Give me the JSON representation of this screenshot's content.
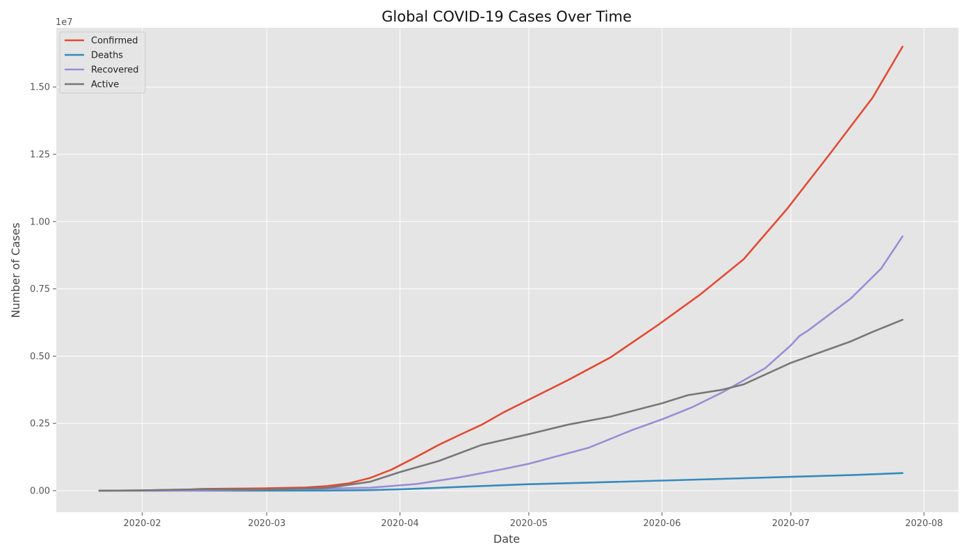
{
  "chart_data": {
    "type": "line",
    "title": "Global COVID-19 Cases Over Time",
    "xlabel": "Date",
    "ylabel": "Number of Cases",
    "y_offset_label": "1e7",
    "x_axis_type": "date",
    "xlim": [
      "2020-01-12",
      "2020-08-09"
    ],
    "ylim": [
      -800000,
      17200000
    ],
    "x_ticks": [
      "2020-02-01",
      "2020-03-01",
      "2020-04-01",
      "2020-05-01",
      "2020-06-01",
      "2020-07-01",
      "2020-08-01"
    ],
    "x_tick_labels": [
      "2020-02",
      "2020-03",
      "2020-04",
      "2020-05",
      "2020-06",
      "2020-07",
      "2020-08"
    ],
    "y_ticks": [
      0,
      2500000,
      5000000,
      7500000,
      10000000,
      12500000,
      15000000
    ],
    "y_tick_labels": [
      "0.00",
      "0.25",
      "0.50",
      "0.75",
      "1.00",
      "1.25",
      "1.50"
    ],
    "grid": true,
    "legend_position": "top-left",
    "background_color": "#e5e5e5",
    "grid_color": "#ffffff",
    "series": [
      {
        "name": "Confirmed",
        "color": "#e24a33",
        "points": [
          [
            "2020-01-22",
            555
          ],
          [
            "2020-02-01",
            12000
          ],
          [
            "2020-02-12",
            45000
          ],
          [
            "2020-02-15",
            69000
          ],
          [
            "2020-03-01",
            88000
          ],
          [
            "2020-03-10",
            120000
          ],
          [
            "2020-03-15",
            170000
          ],
          [
            "2020-03-20",
            270000
          ],
          [
            "2020-03-25",
            470000
          ],
          [
            "2020-03-30",
            780000
          ],
          [
            "2020-04-05",
            1270000
          ],
          [
            "2020-04-10",
            1700000
          ],
          [
            "2020-04-15",
            2080000
          ],
          [
            "2020-04-20",
            2450000
          ],
          [
            "2020-04-25",
            2900000
          ],
          [
            "2020-05-01",
            3380000
          ],
          [
            "2020-05-10",
            4100000
          ],
          [
            "2020-05-20",
            4950000
          ],
          [
            "2020-05-31",
            6150000
          ],
          [
            "2020-06-10",
            7300000
          ],
          [
            "2020-06-20",
            8600000
          ],
          [
            "2020-06-30",
            10450000
          ],
          [
            "2020-07-10",
            12500000
          ],
          [
            "2020-07-20",
            14600000
          ],
          [
            "2020-07-27",
            16500000
          ]
        ]
      },
      {
        "name": "Deaths",
        "color": "#348abd",
        "points": [
          [
            "2020-01-22",
            17
          ],
          [
            "2020-02-01",
            260
          ],
          [
            "2020-03-01",
            3000
          ],
          [
            "2020-03-15",
            6500
          ],
          [
            "2020-03-25",
            22000
          ],
          [
            "2020-04-01",
            50000
          ],
          [
            "2020-04-15",
            140000
          ],
          [
            "2020-05-01",
            240000
          ],
          [
            "2020-05-15",
            300000
          ],
          [
            "2020-06-01",
            375000
          ],
          [
            "2020-06-15",
            440000
          ],
          [
            "2020-07-01",
            515000
          ],
          [
            "2020-07-15",
            580000
          ],
          [
            "2020-07-27",
            655000
          ]
        ]
      },
      {
        "name": "Recovered",
        "color": "#988ed5",
        "points": [
          [
            "2020-01-22",
            28
          ],
          [
            "2020-02-01",
            250
          ],
          [
            "2020-02-15",
            10000
          ],
          [
            "2020-03-01",
            42000
          ],
          [
            "2020-03-15",
            80000
          ],
          [
            "2020-03-25",
            110000
          ],
          [
            "2020-04-05",
            250000
          ],
          [
            "2020-04-15",
            500000
          ],
          [
            "2020-04-25",
            800000
          ],
          [
            "2020-05-01",
            1000000
          ],
          [
            "2020-05-15",
            1600000
          ],
          [
            "2020-05-25",
            2250000
          ],
          [
            "2020-06-01",
            2650000
          ],
          [
            "2020-06-08",
            3100000
          ],
          [
            "2020-06-15",
            3650000
          ],
          [
            "2020-06-25",
            4550000
          ],
          [
            "2020-07-01",
            5400000
          ],
          [
            "2020-07-03",
            5750000
          ],
          [
            "2020-07-05",
            5950000
          ],
          [
            "2020-07-15",
            7150000
          ],
          [
            "2020-07-22",
            8250000
          ],
          [
            "2020-07-27",
            9450000
          ]
        ]
      },
      {
        "name": "Active",
        "color": "#777777",
        "points": [
          [
            "2020-01-22",
            510
          ],
          [
            "2020-02-01",
            11500
          ],
          [
            "2020-02-15",
            55000
          ],
          [
            "2020-03-01",
            43000
          ],
          [
            "2020-03-15",
            100000
          ],
          [
            "2020-03-25",
            330000
          ],
          [
            "2020-04-01",
            690000
          ],
          [
            "2020-04-10",
            1100000
          ],
          [
            "2020-04-20",
            1700000
          ],
          [
            "2020-05-01",
            2100000
          ],
          [
            "2020-05-10",
            2450000
          ],
          [
            "2020-05-20",
            2750000
          ],
          [
            "2020-06-01",
            3250000
          ],
          [
            "2020-06-07",
            3550000
          ],
          [
            "2020-06-15",
            3750000
          ],
          [
            "2020-06-20",
            3950000
          ],
          [
            "2020-07-01",
            4750000
          ],
          [
            "2020-07-15",
            5550000
          ],
          [
            "2020-07-20",
            5900000
          ],
          [
            "2020-07-27",
            6350000
          ]
        ]
      }
    ]
  }
}
